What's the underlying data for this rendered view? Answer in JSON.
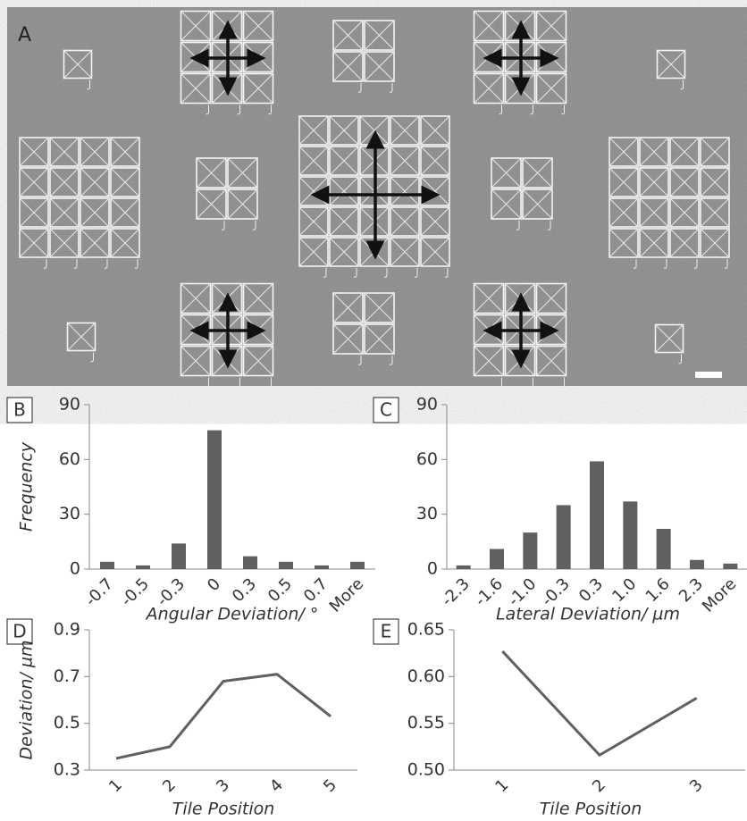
{
  "panel_a": {
    "label": "A"
  },
  "chart_data": [
    {
      "type": "bar",
      "label": "B",
      "xlabel": "Angular Deviation/ °",
      "ylabel": "Frequency",
      "categories": [
        "-0.7",
        "-0.5",
        "-0.3",
        "0",
        "0.3",
        "0.5",
        "0.7",
        "More"
      ],
      "values": [
        4,
        2,
        14,
        76,
        7,
        4,
        2,
        4
      ],
      "color": "#606060",
      "ylim": [
        0,
        90
      ],
      "yticks": [
        0,
        30,
        60,
        90
      ]
    },
    {
      "type": "bar",
      "label": "C",
      "xlabel": "Lateral Deviation/ µm",
      "categories": [
        "-2.3",
        "-1.6",
        "-1.0",
        "-0.3",
        "0.3",
        "1.0",
        "1.6",
        "2.3",
        "More"
      ],
      "values": [
        2,
        11,
        20,
        35,
        59,
        37,
        22,
        5,
        3
      ],
      "color": "#606060",
      "ylim": [
        0,
        90
      ],
      "yticks": [
        0,
        30,
        60,
        90
      ]
    },
    {
      "type": "line",
      "label": "D",
      "xlabel": "Tile Position",
      "ylabel": "Deviation/ µm",
      "categories": [
        "1",
        "2",
        "3",
        "4",
        "5"
      ],
      "values": [
        0.35,
        0.4,
        0.68,
        0.71,
        0.53
      ],
      "color": "#606060",
      "ylim": [
        0.3,
        0.9
      ],
      "yticks": [
        0.3,
        0.5,
        0.7,
        0.9
      ]
    },
    {
      "type": "line",
      "label": "E",
      "xlabel": "Tile Position",
      "categories": [
        "1",
        "2",
        "3"
      ],
      "values": [
        0.627,
        0.516,
        0.577
      ],
      "color": "#606060",
      "ylim": [
        0.5,
        0.65
      ],
      "yticks": [
        {
          "value": 0.5,
          "label": "0.50"
        },
        0.55,
        {
          "value": 0.6,
          "label": "0.60"
        },
        0.65
      ]
    }
  ]
}
